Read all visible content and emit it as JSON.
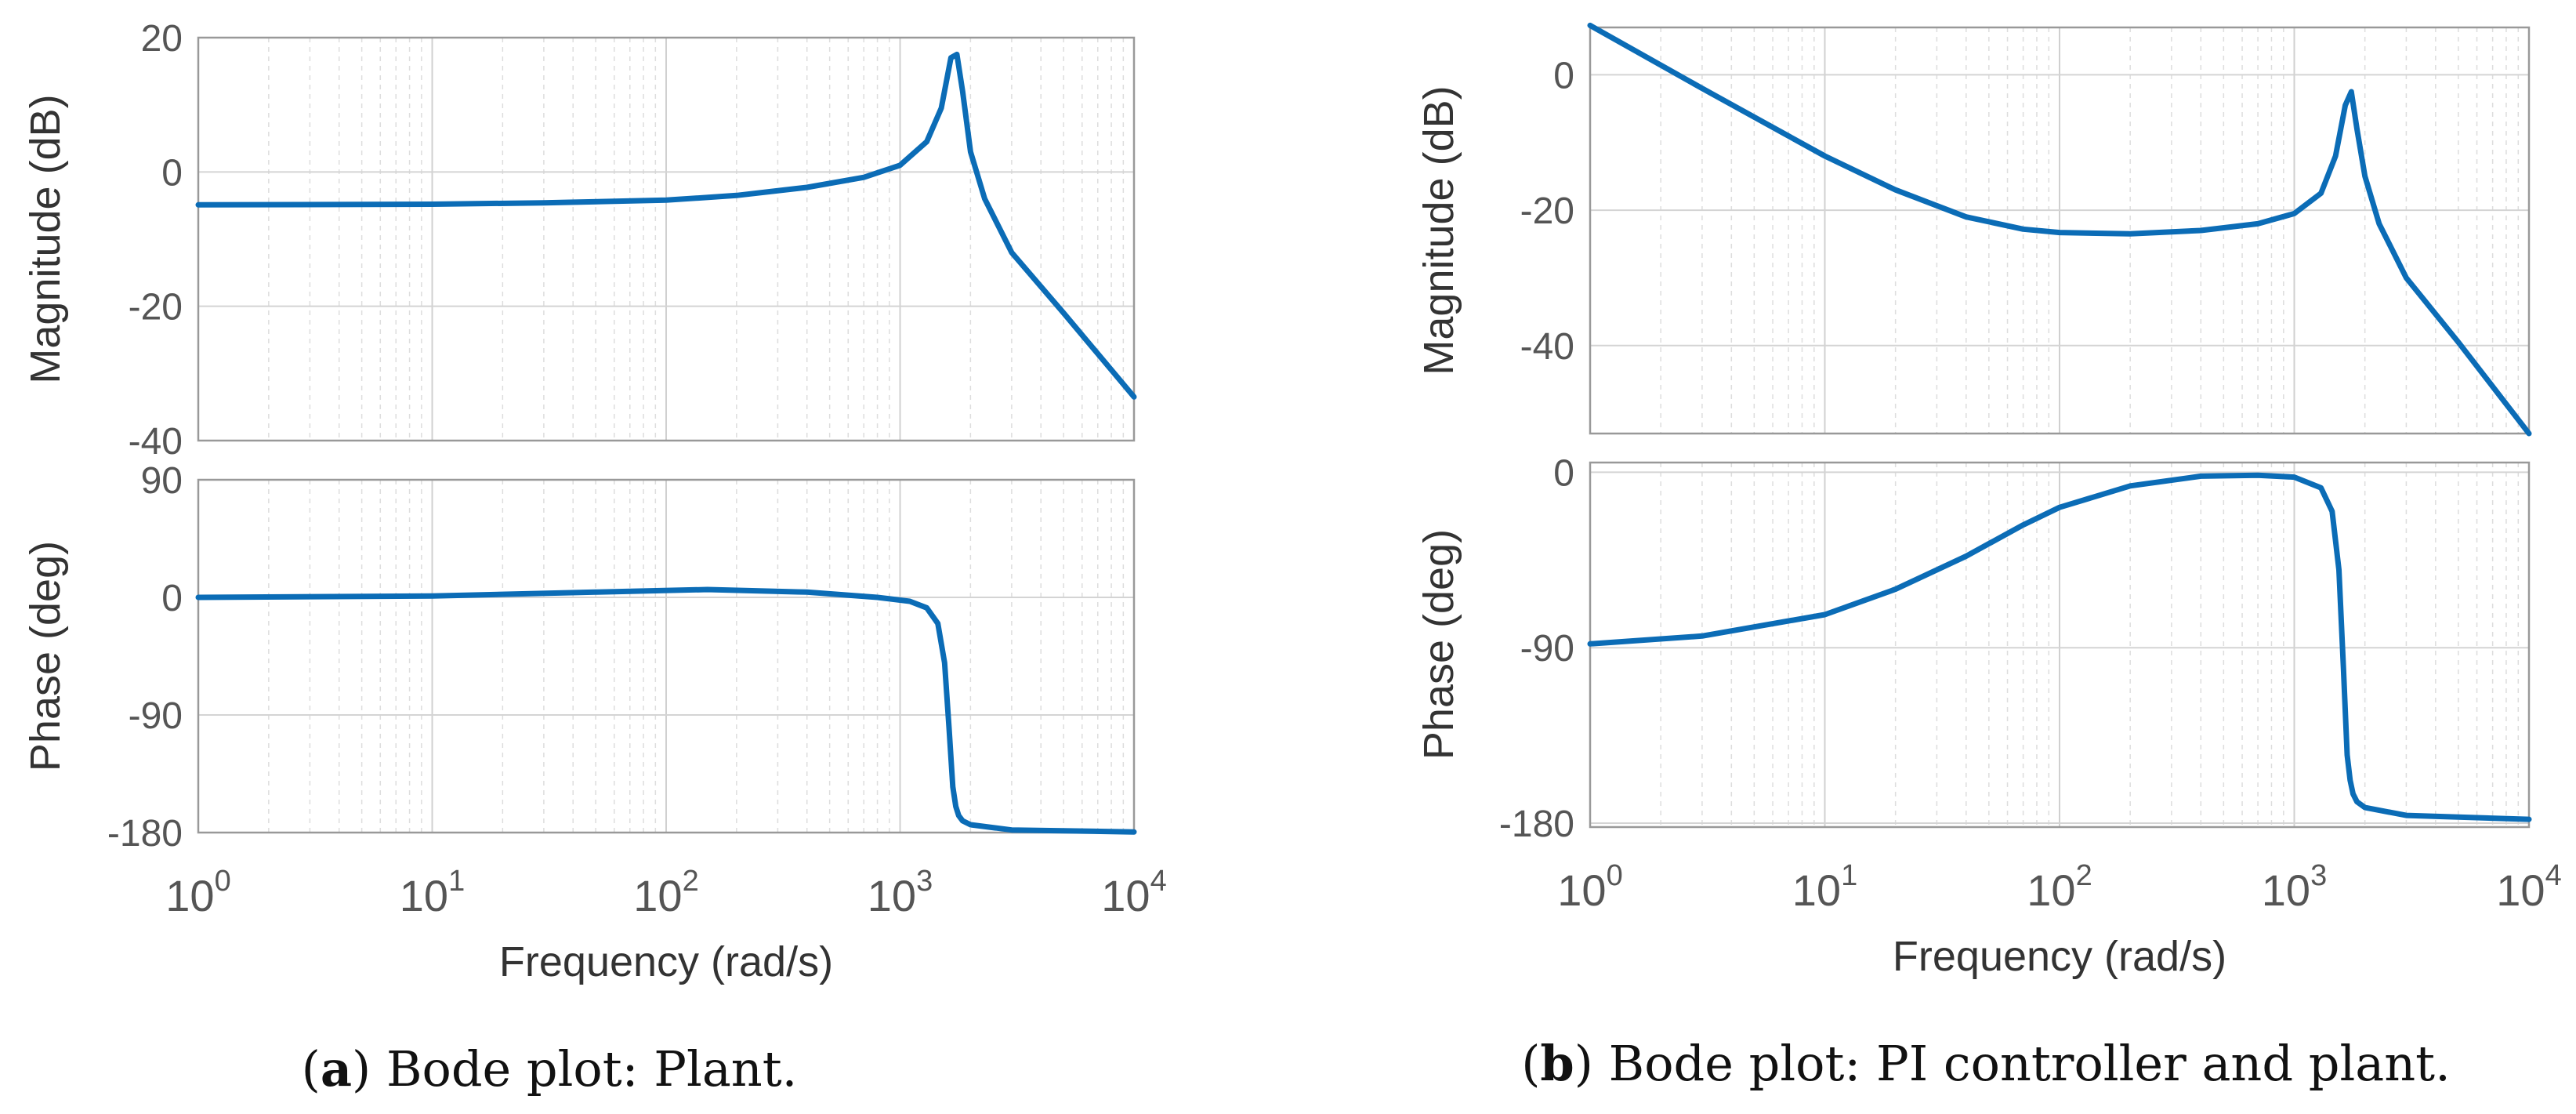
{
  "chart_data": [
    {
      "id": "a",
      "type": "line",
      "title": "Bode plot: Plant.",
      "caption": {
        "letter": "a",
        "text": "Bode plot: Plant."
      },
      "xscale": "log",
      "xlim": [
        1,
        10000
      ],
      "xlabel": "Frequency  (rad/s)",
      "x_ticks": [
        {
          "base": "10",
          "exp": "0"
        },
        {
          "base": "10",
          "exp": "1"
        },
        {
          "base": "10",
          "exp": "2"
        },
        {
          "base": "10",
          "exp": "3"
        },
        {
          "base": "10",
          "exp": "4"
        }
      ],
      "magnitude": {
        "ylabel": "Magnitude (dB)",
        "ylim": [
          -40,
          20
        ],
        "yticks": [
          20,
          0,
          -20,
          -40
        ],
        "ytick_labels": [
          "20",
          "0",
          "-20",
          "-40"
        ],
        "series": [
          {
            "name": "Plant",
            "color": "#0b6cb6",
            "x": [
              1,
              10,
              30,
              100,
              200,
              400,
              700,
              1000,
              1300,
              1500,
              1650,
              1750,
              1850,
              2000,
              2300,
              3000,
              5000,
              10000
            ],
            "y": [
              -4.9,
              -4.8,
              -4.6,
              -4.2,
              -3.5,
              -2.3,
              -0.8,
              1.0,
              4.5,
              9.5,
              17.0,
              17.5,
              12.0,
              3.0,
              -4.0,
              -12.0,
              -21.0,
              -33.5
            ]
          }
        ]
      },
      "phase": {
        "ylabel": "Phase (deg)",
        "ylim": [
          -180,
          90
        ],
        "yticks": [
          90,
          0,
          -90,
          -180
        ],
        "ytick_labels": [
          "90",
          "0",
          "-90",
          "-180"
        ],
        "series": [
          {
            "name": "Plant",
            "color": "#0b6cb6",
            "x": [
              1,
              10,
              50,
              150,
              400,
              800,
              1100,
              1300,
              1450,
              1550,
              1620,
              1680,
              1730,
              1780,
              1850,
              2000,
              3000,
              10000
            ],
            "y": [
              0,
              1,
              4,
              6,
              4,
              0,
              -3,
              -8,
              -20,
              -50,
              -100,
              -145,
              -160,
              -167,
              -171,
              -174,
              -178,
              -179.5
            ]
          }
        ]
      }
    },
    {
      "id": "b",
      "type": "line",
      "title": "Bode plot: PI controller and plant.",
      "caption": {
        "letter": "b",
        "text": "Bode plot: PI controller and plant."
      },
      "xscale": "log",
      "xlim": [
        1,
        10000
      ],
      "xlabel": "Frequency  (rad/s)",
      "x_ticks": [
        {
          "base": "10",
          "exp": "0"
        },
        {
          "base": "10",
          "exp": "1"
        },
        {
          "base": "10",
          "exp": "2"
        },
        {
          "base": "10",
          "exp": "3"
        },
        {
          "base": "10",
          "exp": "4"
        }
      ],
      "magnitude": {
        "ylabel": "Magnitude (dB)",
        "ylim": [
          -53,
          7
        ],
        "yticks": [
          0,
          -20,
          -40
        ],
        "ytick_labels": [
          "0",
          "-20",
          "-40"
        ],
        "series": [
          {
            "name": "PI controller and plant",
            "color": "#0b6cb6",
            "x": [
              1,
              3,
              10,
              20,
              40,
              70,
              100,
              200,
              400,
              700,
              1000,
              1300,
              1500,
              1650,
              1750,
              1850,
              2000,
              2300,
              3000,
              5000,
              10000
            ],
            "y": [
              7.3,
              -2.0,
              -12.0,
              -17.0,
              -21.0,
              -22.8,
              -23.3,
              -23.5,
              -23.0,
              -22.0,
              -20.5,
              -17.5,
              -12.0,
              -4.5,
              -2.5,
              -8.0,
              -15.0,
              -22.0,
              -30.0,
              -39.5,
              -53.0
            ]
          }
        ]
      },
      "phase": {
        "ylabel": "Phase (deg)",
        "ylim": [
          -182,
          5
        ],
        "yticks": [
          0,
          -90,
          -180
        ],
        "ytick_labels": [
          "0",
          "-90",
          "-180"
        ],
        "series": [
          {
            "name": "PI controller and plant",
            "color": "#0b6cb6",
            "x": [
              1,
              3,
              10,
              20,
              40,
              70,
              100,
              200,
              400,
              700,
              1000,
              1300,
              1450,
              1550,
              1620,
              1680,
              1730,
              1780,
              1850,
              2000,
              3000,
              10000
            ],
            "y": [
              -88,
              -84,
              -73,
              -60,
              -43,
              -27,
              -18,
              -7,
              -2,
              -1.5,
              -2.5,
              -8,
              -20,
              -50,
              -100,
              -145,
              -158,
              -165,
              -169,
              -172,
              -176,
              -178
            ]
          }
        ]
      }
    }
  ]
}
